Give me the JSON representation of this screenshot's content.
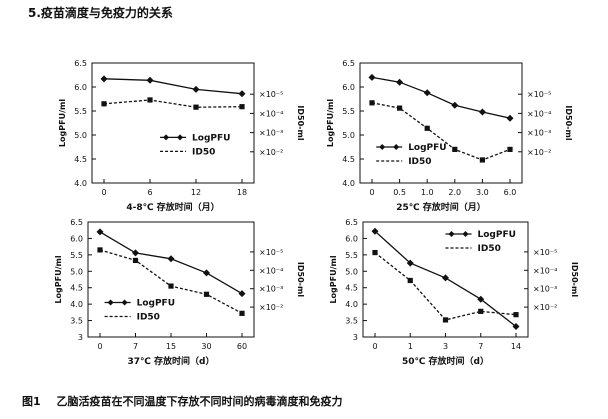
{
  "heading": "5.疫苗滴度与免疫力的关系",
  "caption": {
    "number": "图1",
    "text": "乙脑活疫苗在不同温度下存放不同时间的病毒滴度和免疫力"
  },
  "colors": {
    "line": "#111111",
    "background": "#ffffff"
  },
  "chart_data": [
    {
      "type": "line",
      "xlabel": "4-8℃ 存放时间（月）",
      "ylabel": "LogPFU/ml",
      "y2label": "ID50-ml",
      "categories": [
        "0",
        "6",
        "12",
        "18"
      ],
      "ylim": [
        4.0,
        6.5
      ],
      "yticks": [
        "4.0",
        "4.5",
        "5.0",
        "5.5",
        "6.0",
        "6.5"
      ],
      "y2ticks": [
        "×10⁻⁵",
        "×10⁻⁴",
        "×10⁻³",
        "×10⁻²"
      ],
      "legend": "lower-center",
      "series": [
        {
          "name": "LogPFU",
          "marker": "diamond",
          "dash": "solid",
          "values": [
            6.17,
            6.14,
            5.95,
            5.86
          ]
        },
        {
          "name": "ID50",
          "marker": "square",
          "dash": "dashed",
          "values": [
            5.65,
            5.73,
            5.58,
            5.59
          ]
        }
      ]
    },
    {
      "type": "line",
      "xlabel": "25℃ 存放时间（月）",
      "ylabel": "LogPFU/ml",
      "y2label": "ID50-ml",
      "categories": [
        "0",
        "0.5",
        "1.0",
        "2.0",
        "3.0",
        "6.0"
      ],
      "ylim": [
        4.0,
        6.5
      ],
      "yticks": [
        "4.0",
        "4.5",
        "5.0",
        "5.5",
        "6.0",
        "6.5"
      ],
      "y2ticks": [
        "×10⁻⁵",
        "×10⁻⁴",
        "×10⁻³",
        "×10⁻²"
      ],
      "legend": "lower-left",
      "series": [
        {
          "name": "LogPFU",
          "marker": "diamond",
          "dash": "solid",
          "values": [
            6.2,
            6.1,
            5.88,
            5.62,
            5.48,
            5.35
          ]
        },
        {
          "name": "ID50",
          "marker": "square",
          "dash": "dashed",
          "values": [
            5.67,
            5.56,
            5.14,
            4.7,
            4.48,
            4.7
          ]
        }
      ]
    },
    {
      "type": "line",
      "xlabel": "37℃ 存放时间（d）",
      "ylabel": "LogPFU/ml",
      "y2label": "ID50-ml",
      "categories": [
        "0",
        "7",
        "15",
        "30",
        "60"
      ],
      "ylim": [
        3.0,
        6.5
      ],
      "yticks": [
        "3",
        "3.5",
        "4.0",
        "4.5",
        "5.0",
        "5.5",
        "6.0",
        "6.5"
      ],
      "y2ticks": [
        "×10⁻⁵",
        "×10⁻⁴",
        "×10⁻³",
        "×10⁻²"
      ],
      "legend": "lower-left",
      "series": [
        {
          "name": "LogPFU",
          "marker": "diamond",
          "dash": "solid",
          "values": [
            6.2,
            5.56,
            5.38,
            4.95,
            4.32
          ]
        },
        {
          "name": "ID50",
          "marker": "square",
          "dash": "dashed",
          "values": [
            5.65,
            5.33,
            4.55,
            4.3,
            3.72
          ]
        }
      ]
    },
    {
      "type": "line",
      "xlabel": "50℃ 存放时间（d）",
      "ylabel": "LogPFU/ml",
      "y2label": "ID50-ml",
      "categories": [
        "0",
        "1",
        "3",
        "7",
        "14"
      ],
      "ylim": [
        3.0,
        6.5
      ],
      "yticks": [
        "3",
        "3.5",
        "4.0",
        "4.5",
        "5.0",
        "5.5",
        "6.0",
        "6.5"
      ],
      "y2ticks": [
        "×10⁻⁵",
        "×10⁻⁴",
        "×10⁻³",
        "×10⁻²"
      ],
      "legend": "upper-right",
      "series": [
        {
          "name": "LogPFU",
          "marker": "diamond",
          "dash": "solid",
          "values": [
            6.22,
            5.25,
            4.8,
            4.15,
            3.32
          ]
        },
        {
          "name": "ID50",
          "marker": "square",
          "dash": "dashed",
          "values": [
            5.57,
            4.72,
            3.52,
            3.78,
            3.68
          ]
        }
      ]
    }
  ]
}
